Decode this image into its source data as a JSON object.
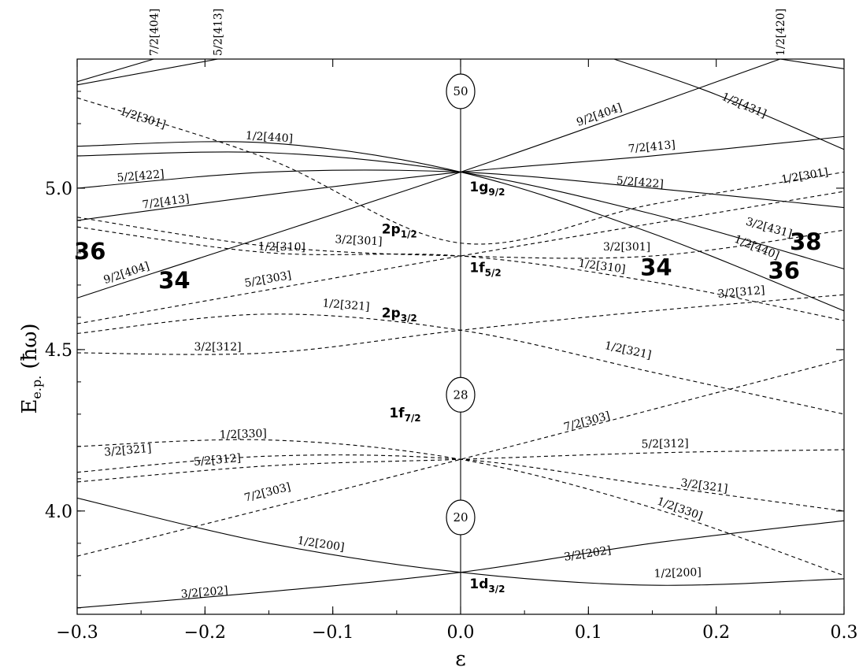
{
  "chart_data": {
    "type": "line",
    "xlabel": "ε",
    "ylabel_main": "E",
    "ylabel_sub": "e.p.",
    "ylabel_unit": "(ħω)",
    "xlim": [
      -0.3,
      0.3
    ],
    "ylim": [
      3.68,
      5.4
    ],
    "xticks": [
      {
        "v": -0.3,
        "label": "−0.3"
      },
      {
        "v": -0.2,
        "label": "−0.2"
      },
      {
        "v": -0.1,
        "label": "−0.1"
      },
      {
        "v": 0.0,
        "label": "0.0"
      },
      {
        "v": 0.1,
        "label": "0.1"
      },
      {
        "v": 0.2,
        "label": "0.2"
      },
      {
        "v": 0.3,
        "label": "0.3"
      }
    ],
    "yticks": [
      {
        "v": 4.0,
        "label": "4.0"
      },
      {
        "v": 4.5,
        "label": "4.5"
      },
      {
        "v": 5.0,
        "label": "5.0"
      }
    ],
    "series": [
      {
        "name": "3/2[202]",
        "style": "solid",
        "x": [
          -0.3,
          -0.15,
          0,
          0.15,
          0.3
        ],
        "y": [
          3.7,
          3.75,
          3.81,
          3.9,
          3.97
        ],
        "labels": [
          {
            "text": "3/2[202]",
            "x": -0.2,
            "y": 3.73
          },
          {
            "text": "3/2[202]",
            "x": 0.1,
            "y": 3.85
          }
        ]
      },
      {
        "name": "1/2[200]",
        "style": "solid",
        "x": [
          -0.3,
          -0.15,
          0,
          0.15,
          0.3
        ],
        "y": [
          4.04,
          3.9,
          3.81,
          3.77,
          3.79
        ],
        "labels": [
          {
            "text": "1/2[200]",
            "x": -0.11,
            "y": 3.88
          },
          {
            "text": "1/2[200]",
            "x": 0.17,
            "y": 3.79
          }
        ]
      },
      {
        "name": "7/2[303]",
        "style": "dashed",
        "x": [
          -0.3,
          0,
          0.3
        ],
        "y": [
          3.86,
          4.16,
          4.47
        ],
        "labels": [
          {
            "text": "7/2[303]",
            "x": -0.15,
            "y": 4.04
          },
          {
            "text": "7/2[303]",
            "x": 0.1,
            "y": 4.26
          }
        ]
      },
      {
        "name": "5/2[312]",
        "style": "dashed",
        "x": [
          -0.3,
          -0.15,
          0,
          0.15,
          0.3
        ],
        "y": [
          4.09,
          4.14,
          4.16,
          4.18,
          4.19
        ],
        "labels": [
          {
            "text": "5/2[312]",
            "x": -0.19,
            "y": 4.14
          },
          {
            "text": "5/2[312]",
            "x": 0.16,
            "y": 4.19
          }
        ]
      },
      {
        "name": "3/2[321]",
        "style": "dashed",
        "x": [
          -0.3,
          -0.15,
          0,
          0.15,
          0.3
        ],
        "y": [
          4.12,
          4.17,
          4.16,
          4.08,
          4.0
        ],
        "labels": [
          {
            "text": "3/2[321]",
            "x": -0.26,
            "y": 4.17
          },
          {
            "text": "3/2[321]",
            "x": 0.19,
            "y": 4.06
          }
        ]
      },
      {
        "name": "1/2[330]",
        "style": "dashed",
        "x": [
          -0.3,
          -0.15,
          0,
          0.15,
          0.3
        ],
        "y": [
          4.2,
          4.22,
          4.16,
          4.01,
          3.8
        ],
        "labels": [
          {
            "text": "1/2[330]",
            "x": -0.17,
            "y": 4.22
          },
          {
            "text": "1/2[330]",
            "x": 0.17,
            "y": 3.99
          }
        ]
      },
      {
        "name": "3/2[312]",
        "style": "dashed",
        "x": [
          -0.3,
          -0.15,
          0,
          0.15,
          0.3
        ],
        "y": [
          4.49,
          4.49,
          4.56,
          4.62,
          4.67
        ],
        "labels": [
          {
            "text": "3/2[312]",
            "x": -0.19,
            "y": 4.49
          },
          {
            "text": "3/2[312]",
            "x": 0.22,
            "y": 4.66
          }
        ]
      },
      {
        "name": "1/2[321]",
        "style": "dashed",
        "x": [
          -0.3,
          -0.15,
          0,
          0.15,
          0.3
        ],
        "y": [
          4.55,
          4.61,
          4.56,
          4.43,
          4.3
        ],
        "labels": [
          {
            "text": "1/2[321]",
            "x": -0.09,
            "y": 4.62
          },
          {
            "text": "1/2[321]",
            "x": 0.13,
            "y": 4.48
          }
        ]
      },
      {
        "name": "5/2[303]",
        "style": "dashed",
        "x": [
          -0.3,
          0,
          0.3
        ],
        "y": [
          4.58,
          4.79,
          4.99
        ],
        "labels": [
          {
            "text": "5/2[303]",
            "x": -0.15,
            "y": 4.7
          }
        ]
      },
      {
        "name": "1/2[310]",
        "style": "dashed",
        "x": [
          -0.3,
          -0.15,
          0,
          0.15,
          0.3
        ],
        "y": [
          4.88,
          4.8,
          4.79,
          4.71,
          4.59
        ],
        "labels": [
          {
            "text": "1/2[310]",
            "x": -0.14,
            "y": 4.8
          },
          {
            "text": "1/2[310]",
            "x": 0.11,
            "y": 4.74
          }
        ]
      },
      {
        "name": "3/2[301]",
        "style": "dashed",
        "x": [
          -0.3,
          -0.15,
          0,
          0.15,
          0.3
        ],
        "y": [
          4.91,
          4.82,
          4.79,
          4.79,
          4.87
        ],
        "labels": [
          {
            "text": "3/2[301]",
            "x": -0.08,
            "y": 4.82
          },
          {
            "text": "3/2[301]",
            "x": 0.13,
            "y": 4.8
          }
        ]
      },
      {
        "name": "1/2[301]",
        "style": "dashed",
        "x": [
          -0.3,
          -0.15,
          0,
          0.15,
          0.3
        ],
        "y": [
          5.28,
          5.09,
          4.83,
          4.95,
          5.05
        ],
        "labels": [
          {
            "text": "1/2[301]",
            "x": -0.25,
            "y": 5.2
          },
          {
            "text": "1/2[301]",
            "x": 0.27,
            "y": 5.02
          }
        ]
      },
      {
        "name": "9/2[404]",
        "style": "solid",
        "x": [
          -0.3,
          0,
          0.25
        ],
        "y": [
          4.66,
          5.05,
          5.4
        ],
        "labels": [
          {
            "text": "9/2[404]",
            "x": -0.26,
            "y": 4.72
          },
          {
            "text": "9/2[404]",
            "x": 0.11,
            "y": 5.21
          }
        ]
      },
      {
        "name": "7/2[413]",
        "style": "solid",
        "x": [
          -0.3,
          -0.15,
          0,
          0.15,
          0.3
        ],
        "y": [
          4.9,
          4.98,
          5.05,
          5.1,
          5.16
        ],
        "labels": [
          {
            "text": "7/2[413]",
            "x": -0.23,
            "y": 4.94
          },
          {
            "text": "7/2[413]",
            "x": 0.15,
            "y": 5.11
          }
        ]
      },
      {
        "name": "5/2[422]",
        "style": "solid",
        "x": [
          -0.3,
          -0.15,
          0,
          0.15,
          0.3
        ],
        "y": [
          5.0,
          5.05,
          5.05,
          5.0,
          4.94
        ],
        "labels": [
          {
            "text": "5/2[422]",
            "x": -0.25,
            "y": 5.02
          },
          {
            "text": "5/2[422]",
            "x": 0.14,
            "y": 5.0
          }
        ]
      },
      {
        "name": "3/2[431]",
        "style": "solid",
        "x": [
          -0.3,
          -0.15,
          0,
          0.15,
          0.3
        ],
        "y": [
          5.1,
          5.11,
          5.05,
          4.92,
          4.75
        ],
        "labels": [
          {
            "text": "3/2[431]",
            "x": 0.24,
            "y": 4.86
          }
        ]
      },
      {
        "name": "1/2[440]",
        "style": "solid",
        "x": [
          -0.3,
          -0.15,
          0,
          0.15,
          0.3
        ],
        "y": [
          5.13,
          5.14,
          5.05,
          4.86,
          4.62
        ],
        "labels": [
          {
            "text": "1/2[440]",
            "x": -0.15,
            "y": 5.14
          },
          {
            "text": "1/2[440]",
            "x": 0.23,
            "y": 4.8
          }
        ]
      },
      {
        "name": "1/2[431]",
        "style": "solid",
        "x": [
          0.12,
          0.2,
          0.3
        ],
        "y": [
          5.4,
          5.29,
          5.12
        ],
        "labels": [
          {
            "text": "1/2[431]",
            "x": 0.22,
            "y": 5.24
          }
        ]
      },
      {
        "name": "7/2[404]",
        "style": "solid",
        "x": [
          -0.3,
          -0.24
        ],
        "y": [
          5.33,
          5.4
        ],
        "labels": []
      },
      {
        "name": "5/2[413]",
        "style": "solid",
        "x": [
          -0.3,
          -0.19
        ],
        "y": [
          5.32,
          5.4
        ],
        "labels": []
      },
      {
        "name": "1/2[420]",
        "style": "solid",
        "x": [
          0.25,
          0.3
        ],
        "y": [
          5.4,
          5.37
        ],
        "labels": []
      }
    ],
    "top_labels": [
      {
        "text": "7/2[404]",
        "x": -0.24
      },
      {
        "text": "5/2[413]",
        "x": -0.19
      },
      {
        "text": "1/2[420]",
        "x": 0.25
      }
    ],
    "shell_labels": [
      {
        "main": "1g",
        "sub": "9/2",
        "x": 0.007,
        "y": 4.99
      },
      {
        "main": "2p",
        "sub": "1/2",
        "x": -0.034,
        "y": 4.86
      },
      {
        "main": "1f",
        "sub": "5/2",
        "x": 0.007,
        "y": 4.74
      },
      {
        "main": "2p",
        "sub": "3/2",
        "x": -0.034,
        "y": 4.6
      },
      {
        "main": "1f",
        "sub": "7/2",
        "x": -0.031,
        "y": 4.29
      },
      {
        "main": "1d",
        "sub": "3/2",
        "x": 0.007,
        "y": 3.76
      }
    ],
    "magic_numbers": [
      {
        "text": "36",
        "x": -0.29,
        "y": 4.78
      },
      {
        "text": "34",
        "x": -0.224,
        "y": 4.69
      },
      {
        "text": "34",
        "x": 0.153,
        "y": 4.73
      },
      {
        "text": "38",
        "x": 0.27,
        "y": 4.81
      },
      {
        "text": "36",
        "x": 0.253,
        "y": 4.72
      }
    ],
    "circled_magic": [
      {
        "text": "50",
        "y": 5.3
      },
      {
        "text": "28",
        "y": 4.36
      },
      {
        "text": "20",
        "y": 3.98
      }
    ]
  }
}
